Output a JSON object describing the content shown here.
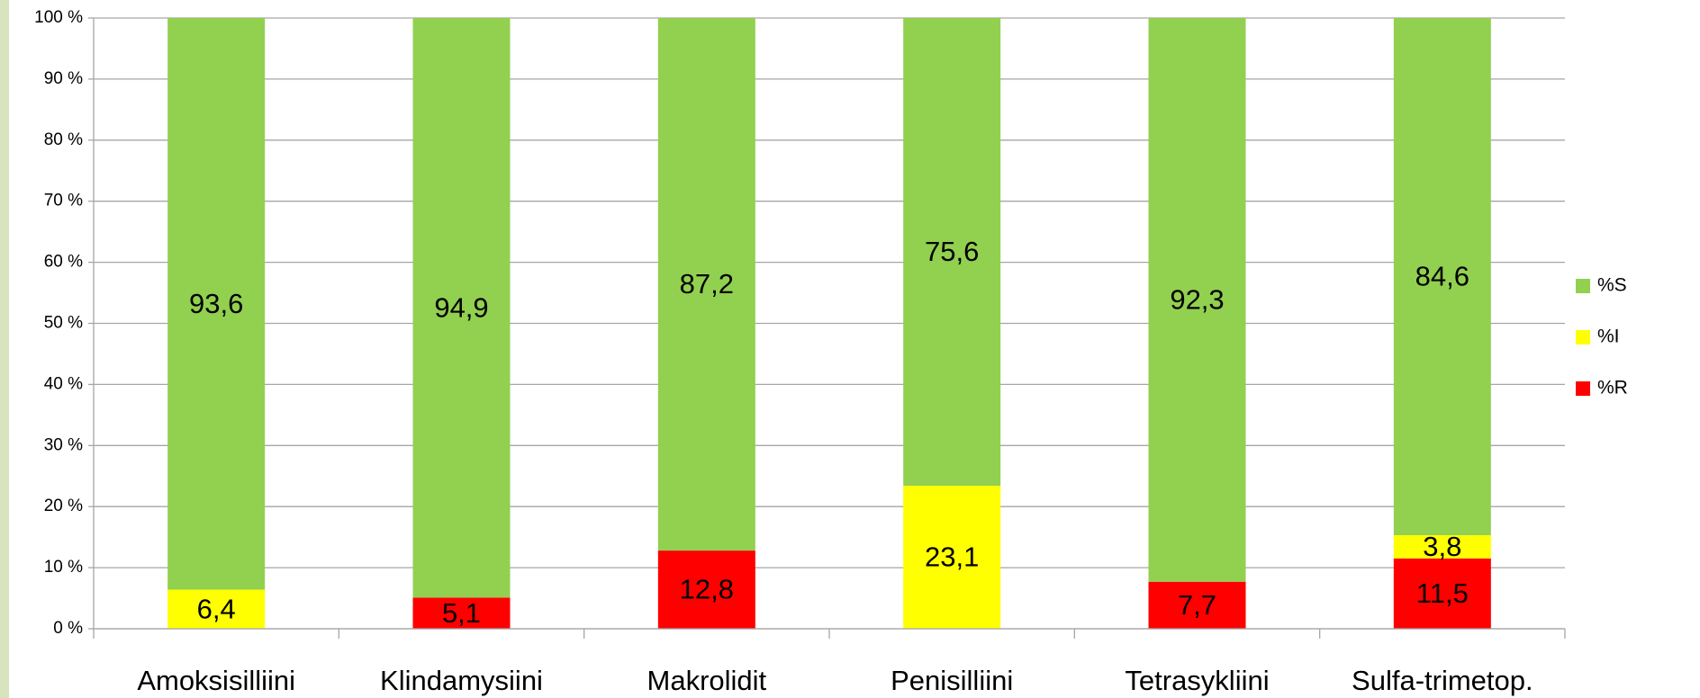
{
  "chart_data": {
    "type": "stacked_bar_100",
    "categories": [
      "Amoksisilliini",
      "Klindamysiini",
      "Makrolidit",
      "Penisilliini",
      "Tetrasykliini",
      "Sulfa-trimetop."
    ],
    "series": [
      {
        "name": "%S",
        "color": "#92d050",
        "values": [
          93.6,
          94.9,
          87.2,
          75.6,
          92.3,
          84.6
        ],
        "value_labels": [
          "93,6",
          "94,9",
          "87,2",
          "75,6",
          "92,3",
          "84,6"
        ]
      },
      {
        "name": "%I",
        "color": "#ffff00",
        "values": [
          6.4,
          null,
          null,
          23.1,
          null,
          3.8
        ],
        "value_labels": [
          "6,4",
          null,
          null,
          "23,1",
          null,
          "3,8"
        ]
      },
      {
        "name": "%R",
        "color": "#ff0000",
        "values": [
          null,
          5.1,
          12.8,
          null,
          7.7,
          11.5
        ],
        "value_labels": [
          null,
          "5,1",
          "12,8",
          null,
          "7,7",
          "11,5"
        ]
      }
    ],
    "ylim": [
      0,
      100
    ],
    "yticks": [
      {
        "value": 0,
        "label": "0 %"
      },
      {
        "value": 10,
        "label": "10 %"
      },
      {
        "value": 20,
        "label": "20 %"
      },
      {
        "value": 30,
        "label": "30 %"
      },
      {
        "value": 40,
        "label": "40 %"
      },
      {
        "value": 50,
        "label": "50 %"
      },
      {
        "value": 60,
        "label": "60 %"
      },
      {
        "value": 70,
        "label": "70 %"
      },
      {
        "value": 80,
        "label": "80 %"
      },
      {
        "value": 90,
        "label": "90 %"
      },
      {
        "value": 100,
        "label": "100 %"
      }
    ],
    "grid": true,
    "legend": "right"
  }
}
